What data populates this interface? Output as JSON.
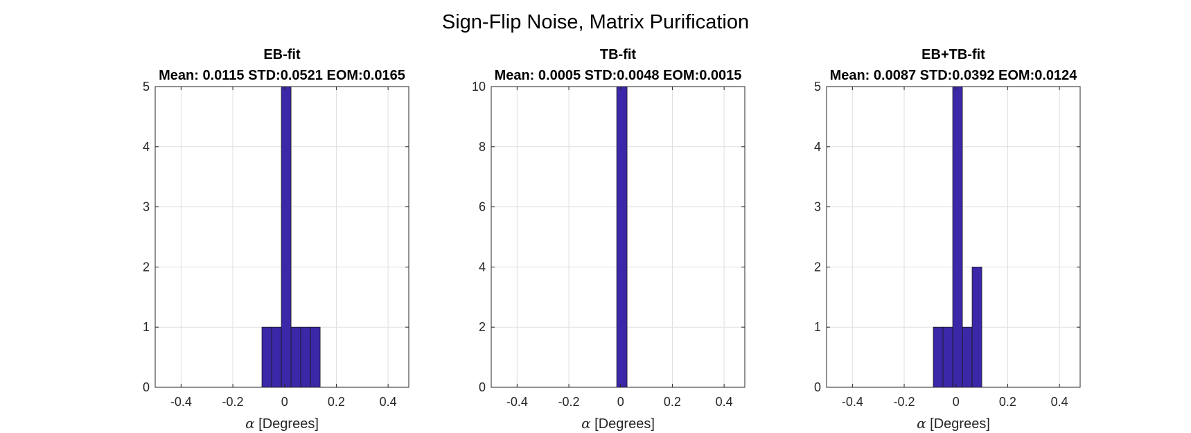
{
  "figure": {
    "suptitle": "Sign-Flip Noise, Matrix Purification"
  },
  "chart_data": [
    {
      "type": "bar",
      "title": "EB-fit",
      "subtitle": "Mean: 0.0115 STD:0.0521 EOM:0.0165",
      "xlabel_symbol": "α",
      "xlabel_text": " [Degrees]",
      "ylabel": "",
      "xlim": [
        -0.5,
        0.48
      ],
      "ylim": [
        0,
        5
      ],
      "xticks": [
        -0.4,
        -0.2,
        0,
        0.2,
        0.4
      ],
      "xtick_labels": [
        "-0.4",
        "-0.2",
        "0",
        "0.2",
        "0.4"
      ],
      "yticks": [
        0,
        1,
        2,
        3,
        4,
        5
      ],
      "ytick_labels": [
        "0",
        "1",
        "2",
        "3",
        "4",
        "5"
      ],
      "grid": true,
      "bin_width": 0.0375,
      "bins": [
        {
          "x0": -0.0875,
          "x1": -0.05,
          "value": 1
        },
        {
          "x0": -0.05,
          "x1": -0.0125,
          "value": 1
        },
        {
          "x0": -0.0125,
          "x1": 0.025,
          "value": 5
        },
        {
          "x0": 0.025,
          "x1": 0.0625,
          "value": 1
        },
        {
          "x0": 0.0625,
          "x1": 0.1,
          "value": 1
        },
        {
          "x0": 0.1,
          "x1": 0.1375,
          "value": 1
        }
      ],
      "bar_color": "#3b28a8"
    },
    {
      "type": "bar",
      "title": "TB-fit",
      "subtitle": "Mean: 0.0005 STD:0.0048 EOM:0.0015",
      "xlabel_symbol": "α",
      "xlabel_text": " [Degrees]",
      "ylabel": "",
      "xlim": [
        -0.5,
        0.48
      ],
      "ylim": [
        0,
        10
      ],
      "xticks": [
        -0.4,
        -0.2,
        0,
        0.2,
        0.4
      ],
      "xtick_labels": [
        "-0.4",
        "-0.2",
        "0",
        "0.2",
        "0.4"
      ],
      "yticks": [
        0,
        2,
        4,
        6,
        8,
        10
      ],
      "ytick_labels": [
        "0",
        "2",
        "4",
        "6",
        "8",
        "10"
      ],
      "grid": true,
      "bin_width": 0.04,
      "bins": [
        {
          "x0": -0.015,
          "x1": 0.025,
          "value": 10
        }
      ],
      "bar_color": "#3b28a8"
    },
    {
      "type": "bar",
      "title": "EB+TB-fit",
      "subtitle": "Mean: 0.0087 STD:0.0392 EOM:0.0124",
      "xlabel_symbol": "α",
      "xlabel_text": " [Degrees]",
      "ylabel": "",
      "xlim": [
        -0.5,
        0.48
      ],
      "ylim": [
        0,
        5
      ],
      "xticks": [
        -0.4,
        -0.2,
        0,
        0.2,
        0.4
      ],
      "xtick_labels": [
        "-0.4",
        "-0.2",
        "0",
        "0.2",
        "0.4"
      ],
      "yticks": [
        0,
        1,
        2,
        3,
        4,
        5
      ],
      "ytick_labels": [
        "0",
        "1",
        "2",
        "3",
        "4",
        "5"
      ],
      "grid": true,
      "bin_width": 0.0375,
      "bins": [
        {
          "x0": -0.0875,
          "x1": -0.05,
          "value": 1
        },
        {
          "x0": -0.05,
          "x1": -0.0125,
          "value": 1
        },
        {
          "x0": -0.0125,
          "x1": 0.025,
          "value": 5
        },
        {
          "x0": 0.025,
          "x1": 0.0625,
          "value": 1
        },
        {
          "x0": 0.0625,
          "x1": 0.1,
          "value": 2
        }
      ],
      "bar_color": "#3b28a8"
    }
  ]
}
